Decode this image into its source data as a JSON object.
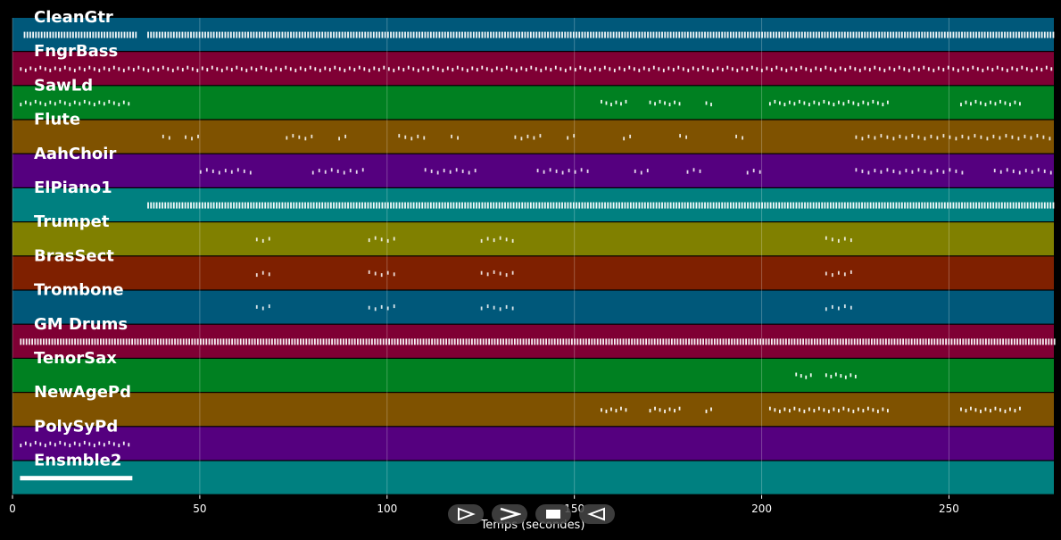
{
  "chart_data": {
    "type": "timeline",
    "xlabel": "Temps (secondes)",
    "xlim": [
      0,
      278
    ],
    "xticks": [
      0,
      50,
      100,
      150,
      200,
      250
    ],
    "grid": true,
    "tracks": [
      {
        "name": "CleanGtr",
        "color": "#00587a",
        "segments": [
          [
            3,
            33
          ],
          [
            36,
            278
          ]
        ],
        "density": "dense"
      },
      {
        "name": "FngrBass",
        "color": "#7f0034",
        "segments": [
          [
            2,
            278
          ]
        ],
        "density": "medium"
      },
      {
        "name": "SawLd",
        "color": "#008021",
        "segments": [
          [
            2,
            32
          ],
          [
            157,
            164
          ],
          [
            170,
            179
          ],
          [
            185,
            187
          ],
          [
            202,
            234
          ],
          [
            253,
            270
          ]
        ],
        "density": "medium"
      },
      {
        "name": "Flute",
        "color": "#7f5200",
        "segments": [
          [
            40,
            43
          ],
          [
            46,
            50
          ],
          [
            73,
            80
          ],
          [
            87,
            90
          ],
          [
            103,
            110
          ],
          [
            117,
            120
          ],
          [
            134,
            142
          ],
          [
            148,
            151
          ],
          [
            163,
            165
          ],
          [
            178,
            180
          ],
          [
            193,
            195
          ],
          [
            225,
            278
          ]
        ],
        "density": "sparse"
      },
      {
        "name": "AahChoir",
        "color": "#55007f",
        "segments": [
          [
            50,
            64
          ],
          [
            80,
            95
          ],
          [
            110,
            124
          ],
          [
            140,
            154
          ],
          [
            166,
            170
          ],
          [
            180,
            185
          ],
          [
            196,
            200
          ],
          [
            225,
            255
          ],
          [
            262,
            278
          ]
        ],
        "density": "sparse"
      },
      {
        "name": "ElPiano1",
        "color": "#008080",
        "segments": [
          [
            36,
            278
          ]
        ],
        "density": "dense"
      },
      {
        "name": "Trumpet",
        "color": "#808000",
        "segments": [
          [
            65,
            69
          ],
          [
            95,
            102
          ],
          [
            125,
            135
          ],
          [
            217,
            225
          ]
        ],
        "density": "sparse"
      },
      {
        "name": "BrasSect",
        "color": "#7f2000",
        "segments": [
          [
            65,
            69
          ],
          [
            95,
            102
          ],
          [
            125,
            135
          ],
          [
            217,
            225
          ]
        ],
        "density": "sparse"
      },
      {
        "name": "Trombone",
        "color": "#00587a",
        "segments": [
          [
            65,
            69
          ],
          [
            95,
            102
          ],
          [
            125,
            135
          ],
          [
            217,
            225
          ]
        ],
        "density": "sparse"
      },
      {
        "name": "GM Drums",
        "color": "#7f0034",
        "segments": [
          [
            2,
            278
          ]
        ],
        "density": "dense"
      },
      {
        "name": "TenorSax",
        "color": "#008021",
        "segments": [
          [
            209,
            213
          ],
          [
            217,
            225
          ]
        ],
        "density": "medium"
      },
      {
        "name": "NewAgePd",
        "color": "#7f5200",
        "segments": [
          [
            157,
            164
          ],
          [
            170,
            179
          ],
          [
            185,
            187
          ],
          [
            202,
            234
          ],
          [
            253,
            270
          ]
        ],
        "density": "medium"
      },
      {
        "name": "PolySyPd",
        "color": "#55007f",
        "segments": [
          [
            2,
            32
          ]
        ],
        "density": "medium"
      },
      {
        "name": "Ensmble2",
        "color": "#008080",
        "segments": [
          [
            2,
            32
          ]
        ],
        "density": "solid"
      }
    ]
  },
  "controls": {
    "play_icon": "play-outline-icon",
    "forward_icon": "chevron-right-icon",
    "stop_icon": "stop-icon",
    "rewind_icon": "rewind-icon"
  }
}
